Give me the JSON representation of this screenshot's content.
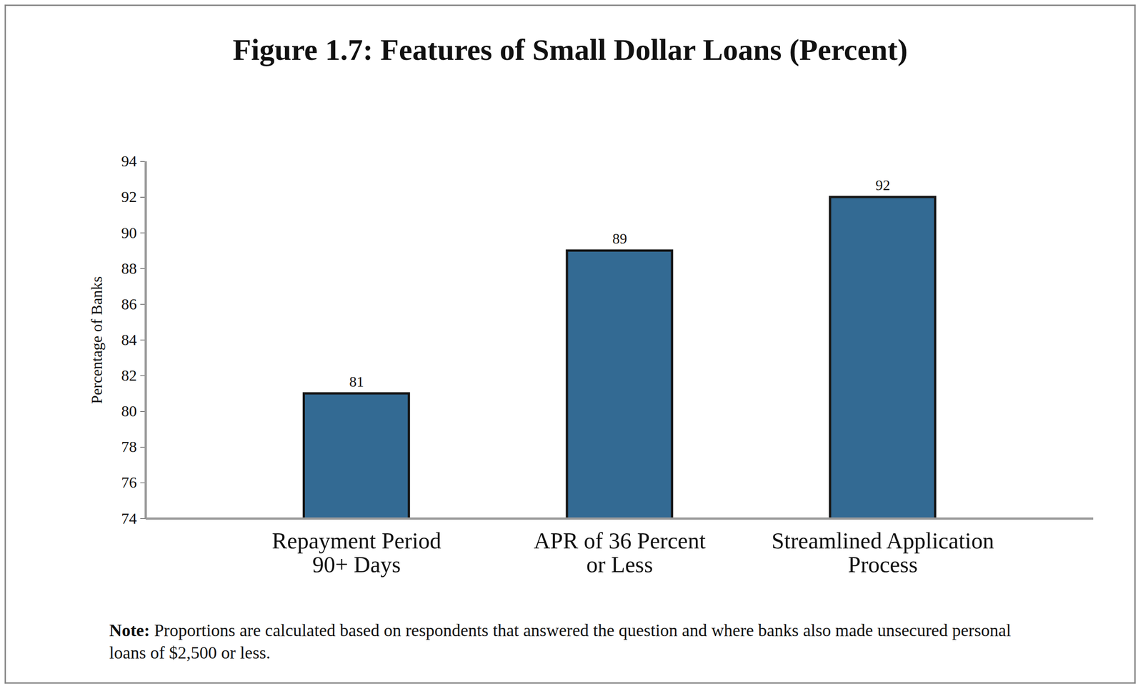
{
  "chart_data": {
    "type": "bar",
    "title": "Figure 1.7: Features of Small Dollar Loans (Percent)",
    "y_label": "Percentage of Banks",
    "categories": [
      "Repayment Period\n90+ Days",
      "APR of 36 Percent\nor Less",
      "Streamlined Application\nProcess"
    ],
    "values": [
      81,
      89,
      92
    ],
    "color": "#336a93",
    "ylim": [
      74,
      94
    ],
    "yticks": [
      74,
      76,
      78,
      80,
      82,
      84,
      86,
      88,
      90,
      92,
      94
    ],
    "grid": false,
    "data_labels": true,
    "note": {
      "label": "Note:",
      "text": "Proportions are calculated based on respondents that answered the question and where banks also made unsecured personal loans of $2,500 or less."
    }
  }
}
